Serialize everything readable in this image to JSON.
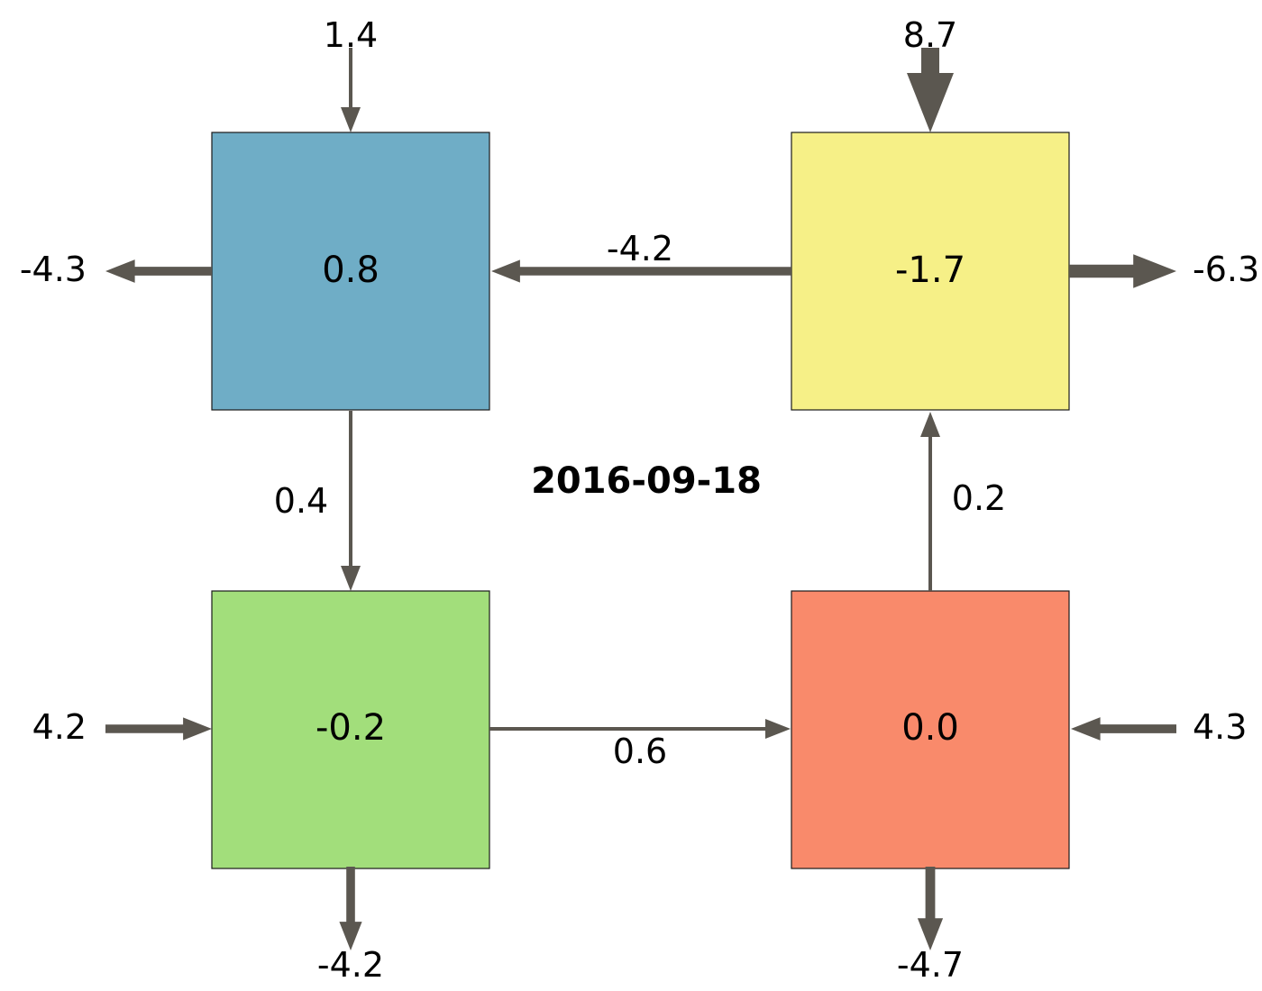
{
  "title": "2016-09-18",
  "colors": {
    "arrow": "#5b5750",
    "box_border": "#1a1a1a"
  },
  "boxes": {
    "top_left": {
      "value": "0.8",
      "color": "#6fadc6"
    },
    "top_right": {
      "value": "-1.7",
      "color": "#f6f087"
    },
    "bottom_left": {
      "value": "-0.2",
      "color": "#a2de7b"
    },
    "bottom_right": {
      "value": "0.0",
      "color": "#f98a6b"
    }
  },
  "internal_flows": {
    "top_right_to_top_left": "-4.2",
    "top_left_to_bottom_left": "0.4",
    "bottom_left_to_bottom_right": "0.6",
    "bottom_right_to_top_right": "0.2"
  },
  "external_flows": {
    "top_left_in_top": "1.4",
    "top_left_out_left": "-4.3",
    "top_right_in_top": "8.7",
    "top_right_out_right": "-6.3",
    "bottom_left_in_left": "4.2",
    "bottom_left_out_bottom": "-4.2",
    "bottom_right_in_right": "4.3",
    "bottom_right_out_bottom": "-4.7"
  }
}
